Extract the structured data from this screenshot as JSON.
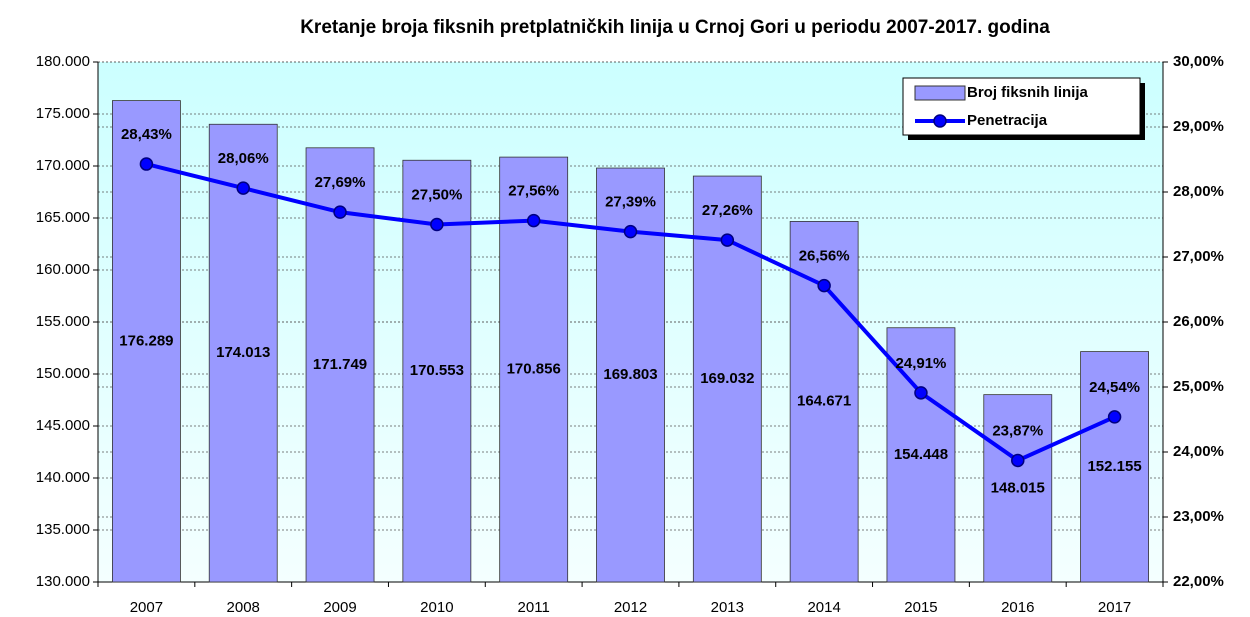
{
  "chart_data": {
    "type": "bar",
    "title": "Kretanje broja fiksnih pretplatničkih linija u Crnoj Gori u periodu 2007-2017. godina",
    "categories": [
      "2007",
      "2008",
      "2009",
      "2010",
      "2011",
      "2012",
      "2013",
      "2014",
      "2015",
      "2016",
      "2017"
    ],
    "series": [
      {
        "name": "Broj fiksnih linija",
        "type": "bar",
        "color": "#9999ff",
        "values": [
          176289,
          174013,
          171749,
          170553,
          170856,
          169803,
          169032,
          164671,
          154448,
          148015,
          152155
        ],
        "value_labels": [
          "176.289",
          "174.013",
          "171.749",
          "170.553",
          "170.856",
          "169.803",
          "169.032",
          "164.671",
          "154.448",
          "148.015",
          "152.155"
        ]
      },
      {
        "name": "Penetracija",
        "type": "line",
        "axis": "y2",
        "color": "#0000ff",
        "values": [
          28.43,
          28.06,
          27.69,
          27.5,
          27.56,
          27.39,
          27.26,
          26.56,
          24.91,
          23.87,
          24.54
        ],
        "value_labels": [
          "28,43%",
          "28,06%",
          "27,69%",
          "27,50%",
          "27,56%",
          "27,39%",
          "27,26%",
          "26,56%",
          "24,91%",
          "23,87%",
          "24,54%"
        ]
      }
    ],
    "ylim": [
      130000,
      180000
    ],
    "yticks": [
      {
        "value": 130000,
        "label": "130.000"
      },
      {
        "value": 135000,
        "label": "135.000"
      },
      {
        "value": 140000,
        "label": "140.000"
      },
      {
        "value": 145000,
        "label": "145.000"
      },
      {
        "value": 150000,
        "label": "150.000"
      },
      {
        "value": 155000,
        "label": "155.000"
      },
      {
        "value": 160000,
        "label": "160.000"
      },
      {
        "value": 165000,
        "label": "165.000"
      },
      {
        "value": 170000,
        "label": "170.000"
      },
      {
        "value": 175000,
        "label": "175.000"
      },
      {
        "value": 180000,
        "label": "180.000"
      }
    ],
    "y2lim": [
      22,
      30
    ],
    "y2ticks": [
      {
        "value": 22,
        "label": "22,00%"
      },
      {
        "value": 23,
        "label": "23,00%"
      },
      {
        "value": 24,
        "label": "24,00%"
      },
      {
        "value": 25,
        "label": "25,00%"
      },
      {
        "value": 26,
        "label": "26,00%"
      },
      {
        "value": 27,
        "label": "27,00%"
      },
      {
        "value": 28,
        "label": "28,00%"
      },
      {
        "value": 29,
        "label": "29,00%"
      },
      {
        "value": 30,
        "label": "30,00%"
      }
    ],
    "grid": true,
    "legend": "top-right"
  }
}
